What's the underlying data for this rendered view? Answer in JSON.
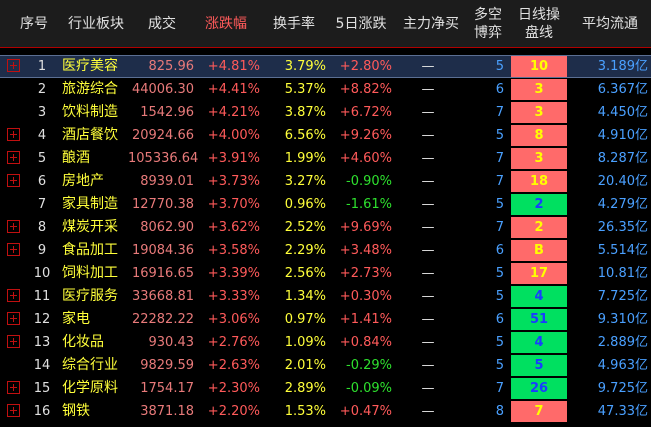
{
  "headers": {
    "seq": "序号",
    "sector": "行业板块",
    "volume": "成交",
    "change": "涨跌幅",
    "turnover": "换手率",
    "five_day": "5日涨跌",
    "net_flow": "主力净买",
    "bull_bear_1": "多空",
    "bull_bear_2": "博弈",
    "daily_op_1": "日线操",
    "daily_op_2": "盘线",
    "avg_float": "平均流通"
  },
  "colors": {
    "header_bg": "#1c1c1c",
    "rise": "#ff5a5a",
    "fall": "#2ee02e",
    "name": "#ffff3a",
    "op_red_bg": "#ff6a6a",
    "op_green_bg": "#00e060",
    "selected_row_bg": "#1e2d4a"
  },
  "rows": [
    {
      "expand": true,
      "seq": "1",
      "name": "医疗美容",
      "volume": "825.96",
      "change": "+4.81%",
      "turnover": "3.79%",
      "five_day": "+2.80%",
      "five_dir": "up",
      "flow": "—",
      "bull": "5",
      "op": "10",
      "op_color": "red",
      "avg": "3.189亿",
      "selected": true
    },
    {
      "expand": false,
      "seq": "2",
      "name": "旅游综合",
      "volume": "44006.30",
      "change": "+4.41%",
      "turnover": "5.37%",
      "five_day": "+8.82%",
      "five_dir": "up",
      "flow": "—",
      "bull": "6",
      "op": "3",
      "op_color": "red",
      "avg": "6.367亿"
    },
    {
      "expand": false,
      "seq": "3",
      "name": "饮料制造",
      "volume": "1542.96",
      "change": "+4.21%",
      "turnover": "3.87%",
      "five_day": "+6.72%",
      "five_dir": "up",
      "flow": "—",
      "bull": "7",
      "op": "3",
      "op_color": "red",
      "avg": "4.450亿"
    },
    {
      "expand": true,
      "seq": "4",
      "name": "酒店餐饮",
      "volume": "20924.66",
      "change": "+4.00%",
      "turnover": "6.56%",
      "five_day": "+9.26%",
      "five_dir": "up",
      "flow": "—",
      "bull": "5",
      "op": "8",
      "op_color": "red",
      "avg": "4.910亿"
    },
    {
      "expand": true,
      "seq": "5",
      "name": "酿酒",
      "volume": "105336.64",
      "change": "+3.91%",
      "turnover": "1.99%",
      "five_day": "+4.60%",
      "five_dir": "up",
      "flow": "—",
      "bull": "7",
      "op": "3",
      "op_color": "red",
      "avg": "8.287亿"
    },
    {
      "expand": true,
      "seq": "6",
      "name": "房地产",
      "volume": "8939.01",
      "change": "+3.73%",
      "turnover": "3.27%",
      "five_day": "-0.90%",
      "five_dir": "down",
      "flow": "—",
      "bull": "7",
      "op": "18",
      "op_color": "red",
      "avg": "20.40亿"
    },
    {
      "expand": false,
      "seq": "7",
      "name": "家具制造",
      "volume": "12770.38",
      "change": "+3.70%",
      "turnover": "0.96%",
      "five_day": "-1.61%",
      "five_dir": "down",
      "flow": "—",
      "bull": "5",
      "op": "2",
      "op_color": "green",
      "avg": "4.279亿"
    },
    {
      "expand": true,
      "seq": "8",
      "name": "煤炭开采",
      "volume": "8062.90",
      "change": "+3.62%",
      "turnover": "2.52%",
      "five_day": "+9.69%",
      "five_dir": "up",
      "flow": "—",
      "bull": "7",
      "op": "2",
      "op_color": "red",
      "avg": "26.35亿"
    },
    {
      "expand": true,
      "seq": "9",
      "name": "食品加工",
      "volume": "19084.36",
      "change": "+3.58%",
      "turnover": "2.29%",
      "five_day": "+3.48%",
      "five_dir": "up",
      "flow": "—",
      "bull": "6",
      "op": "B",
      "op_color": "red",
      "avg": "5.514亿"
    },
    {
      "expand": false,
      "seq": "10",
      "name": "饲料加工",
      "volume": "16916.65",
      "change": "+3.39%",
      "turnover": "2.56%",
      "five_day": "+2.73%",
      "five_dir": "up",
      "flow": "—",
      "bull": "5",
      "op": "17",
      "op_color": "red",
      "avg": "10.81亿"
    },
    {
      "expand": true,
      "seq": "11",
      "name": "医疗服务",
      "volume": "33668.81",
      "change": "+3.33%",
      "turnover": "1.34%",
      "five_day": "+0.30%",
      "five_dir": "up",
      "flow": "—",
      "bull": "5",
      "op": "4",
      "op_color": "green",
      "avg": "7.725亿"
    },
    {
      "expand": true,
      "seq": "12",
      "name": "家电",
      "volume": "22282.22",
      "change": "+3.06%",
      "turnover": "0.97%",
      "five_day": "+1.41%",
      "five_dir": "up",
      "flow": "—",
      "bull": "6",
      "op": "51",
      "op_color": "green",
      "avg": "9.310亿"
    },
    {
      "expand": true,
      "seq": "13",
      "name": "化妆品",
      "volume": "930.43",
      "change": "+2.76%",
      "turnover": "1.09%",
      "five_day": "+0.84%",
      "five_dir": "up",
      "flow": "—",
      "bull": "5",
      "op": "4",
      "op_color": "green",
      "avg": "2.889亿"
    },
    {
      "expand": false,
      "seq": "14",
      "name": "综合行业",
      "volume": "9829.59",
      "change": "+2.63%",
      "turnover": "2.01%",
      "five_day": "-0.29%",
      "five_dir": "down",
      "flow": "—",
      "bull": "5",
      "op": "5",
      "op_color": "green",
      "avg": "4.963亿"
    },
    {
      "expand": true,
      "seq": "15",
      "name": "化学原料",
      "volume": "1754.17",
      "change": "+2.30%",
      "turnover": "2.89%",
      "five_day": "-0.09%",
      "five_dir": "down",
      "flow": "—",
      "bull": "7",
      "op": "26",
      "op_color": "green",
      "avg": "9.725亿"
    },
    {
      "expand": true,
      "seq": "16",
      "name": "钢铁",
      "volume": "3871.18",
      "change": "+2.20%",
      "turnover": "1.53%",
      "five_day": "+0.47%",
      "five_dir": "up",
      "flow": "—",
      "bull": "8",
      "op": "7",
      "op_color": "red",
      "avg": "47.33亿"
    }
  ]
}
